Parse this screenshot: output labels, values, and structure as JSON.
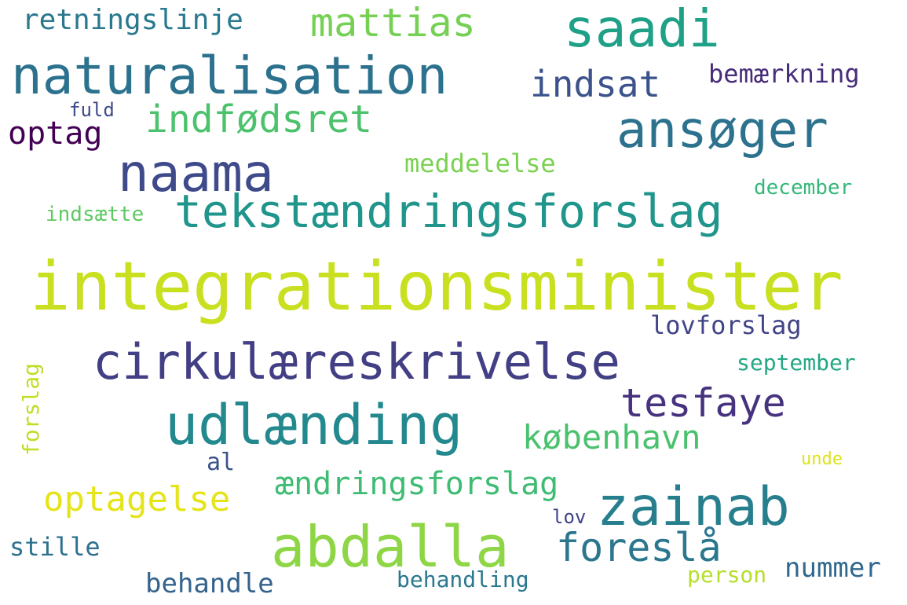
{
  "words": [
    {
      "text": "integrationsminister",
      "color": "#c8e020"
    },
    {
      "text": "cirkulæreskrivelse",
      "color": "#423f85"
    },
    {
      "text": "tekstændringsforslag",
      "color": "#1f958b"
    },
    {
      "text": "naturalisation",
      "color": "#2c728e"
    },
    {
      "text": "udlænding",
      "color": "#23898e"
    },
    {
      "text": "abdalla",
      "color": "#8ed645"
    },
    {
      "text": "zainab",
      "color": "#277f8e"
    },
    {
      "text": "naama",
      "color": "#3e4a89"
    },
    {
      "text": "ansøger",
      "color": "#2c728e"
    },
    {
      "text": "saadi",
      "color": "#1fa187"
    },
    {
      "text": "mattias",
      "color": "#75d054"
    },
    {
      "text": "indfødsret",
      "color": "#4cc26c"
    },
    {
      "text": "tesfaye",
      "color": "#46327e"
    },
    {
      "text": "foreslå",
      "color": "#2a778e"
    },
    {
      "text": "indsat",
      "color": "#3b528b"
    },
    {
      "text": "optagelse",
      "color": "#e5e419"
    },
    {
      "text": "københavn",
      "color": "#4ac16d"
    },
    {
      "text": "ændringsforslag",
      "color": "#3fbc73"
    },
    {
      "text": "retningslinje",
      "color": "#2a788e"
    },
    {
      "text": "optag",
      "color": "#440154"
    },
    {
      "text": "bemærkning",
      "color": "#472c7a"
    },
    {
      "text": "meddelelse",
      "color": "#7ad151"
    },
    {
      "text": "lovforslag",
      "color": "#414487"
    },
    {
      "text": "september",
      "color": "#22a884"
    },
    {
      "text": "december",
      "color": "#35b779"
    },
    {
      "text": "indsætte",
      "color": "#5ec962"
    },
    {
      "text": "nummer",
      "color": "#31688e"
    },
    {
      "text": "behandle",
      "color": "#33638d"
    },
    {
      "text": "stille",
      "color": "#2d708e"
    },
    {
      "text": "behandling",
      "color": "#2a788e"
    },
    {
      "text": "person",
      "color": "#b5de2b"
    },
    {
      "text": "al",
      "color": "#3b528b"
    },
    {
      "text": "lov",
      "color": "#414487"
    },
    {
      "text": "unde",
      "color": "#dde318"
    },
    {
      "text": "fuld",
      "color": "#3e4a89"
    },
    {
      "text": "forslag",
      "color": "#bddf26"
    }
  ]
}
